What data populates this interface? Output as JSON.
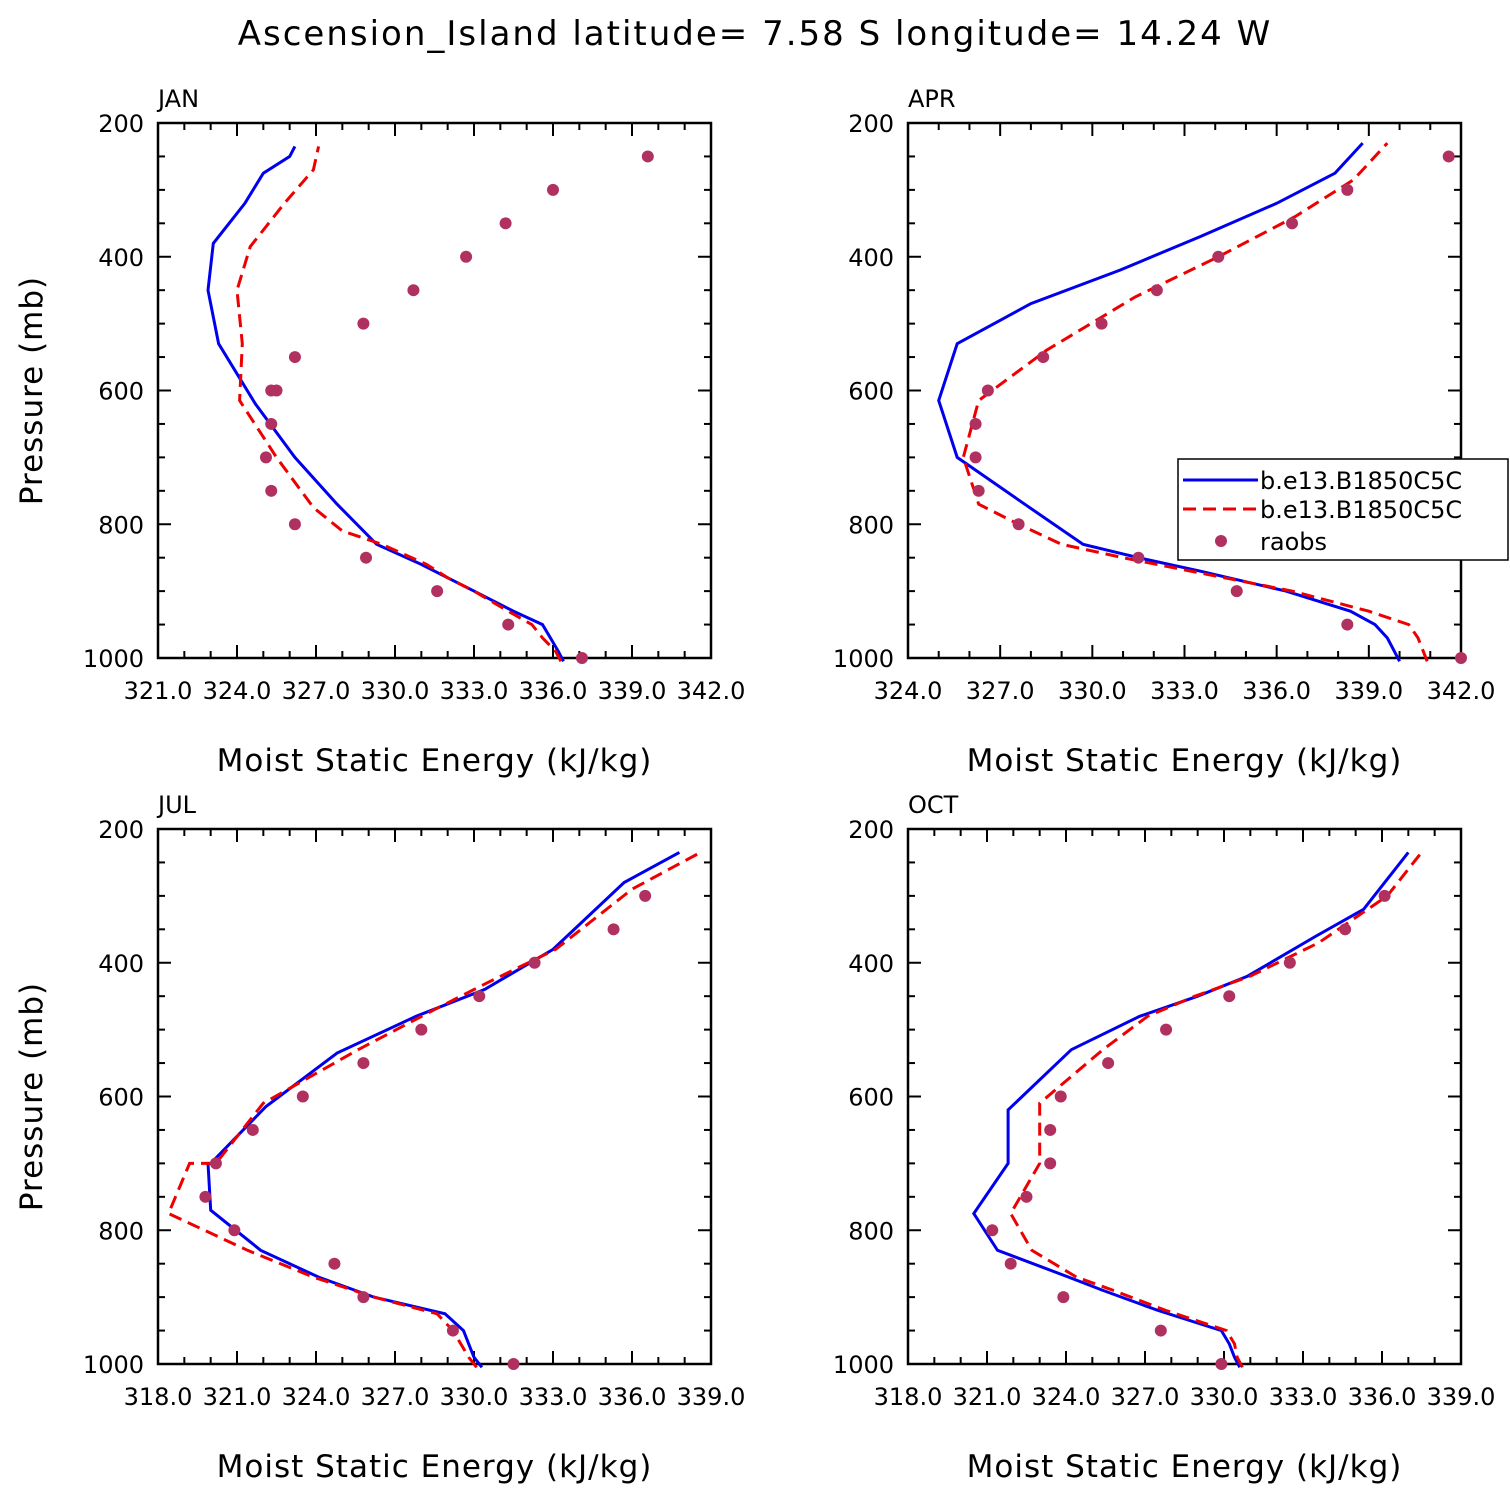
{
  "title": "Ascension_Island  latitude= 7.58 S longitude= 14.24 W",
  "colors": {
    "model1": "#0000ee",
    "model2": "#ee0000",
    "raobs": "#b03060"
  },
  "legend": [
    "b.e13.B1850C5C",
    "b.e13.B1850C5C",
    "raobs"
  ],
  "chart_data": [
    {
      "type": "line",
      "panel": "JAN",
      "xlabel": "Moist Static Energy (kJ/kg)",
      "ylabel": "Pressure (mb)",
      "xlim": [
        321.0,
        342.0
      ],
      "ylim": [
        1000,
        200
      ],
      "y_inverted": true,
      "xticks": [
        "321.0",
        "324.0",
        "327.0",
        "330.0",
        "333.0",
        "336.0",
        "339.0",
        "342.0"
      ],
      "yticks": [
        200,
        400,
        600,
        800,
        1000
      ],
      "series": [
        {
          "name": "b.e13.B1850C5C",
          "style": "solid",
          "x": [
            336.4,
            336.2,
            335.9,
            335.6,
            334.5,
            333.0,
            332.0,
            331.0,
            329.3,
            327.8,
            326.2,
            324.7,
            323.3,
            322.9,
            323.1,
            324.3,
            325.0,
            326.0,
            326.2
          ],
          "y": [
            1005,
            990,
            970,
            950,
            930,
            900,
            880,
            860,
            830,
            770,
            700,
            620,
            530,
            450,
            380,
            320,
            275,
            250,
            235
          ]
        },
        {
          "name": "b.e13.B1850C5C",
          "style": "dashed",
          "x": [
            336.3,
            336.1,
            335.6,
            335.2,
            334.3,
            333.0,
            332.0,
            331.2,
            329.5,
            328.0,
            326.9,
            325.5,
            324.1,
            324.2,
            324.0,
            324.5,
            325.8,
            326.9,
            327.1
          ],
          "y": [
            1005,
            990,
            970,
            950,
            930,
            900,
            880,
            860,
            830,
            810,
            775,
            700,
            615,
            530,
            450,
            385,
            320,
            270,
            235
          ]
        },
        {
          "name": "raobs",
          "style": "points",
          "x": [
            337.1,
            334.3,
            331.6,
            328.9,
            326.2,
            325.3,
            325.3,
            325.1,
            325.3,
            325.5,
            326.2,
            328.8,
            330.7,
            332.7,
            334.2,
            336.0,
            339.6
          ],
          "y": [
            1000,
            950,
            900,
            850,
            800,
            750,
            650,
            700,
            600,
            600,
            550,
            500,
            450,
            400,
            350,
            300,
            250
          ]
        }
      ]
    },
    {
      "type": "line",
      "panel": "APR",
      "xlabel": "Moist Static Energy (kJ/kg)",
      "ylabel": "",
      "xlim": [
        324.0,
        342.0
      ],
      "ylim": [
        1000,
        200
      ],
      "y_inverted": true,
      "xticks": [
        "324.0",
        "327.0",
        "330.0",
        "333.0",
        "336.0",
        "339.0",
        "342.0"
      ],
      "yticks": [
        200,
        400,
        600,
        800,
        1000
      ],
      "series": [
        {
          "name": "b.e13.B1850C5C",
          "style": "solid",
          "x": [
            340.0,
            339.6,
            339.2,
            338.4,
            336.3,
            333.5,
            331.5,
            329.7,
            327.8,
            325.6,
            325.0,
            325.6,
            328.0,
            330.9,
            333.5,
            336.0,
            337.9,
            338.8
          ],
          "y": [
            1005,
            970,
            950,
            930,
            900,
            870,
            850,
            830,
            770,
            700,
            615,
            530,
            470,
            420,
            370,
            320,
            275,
            230
          ]
        },
        {
          "name": "b.e13.B1850C5C",
          "style": "dashed",
          "x": [
            340.9,
            340.6,
            340.3,
            339.0,
            336.5,
            333.2,
            331.0,
            329.0,
            327.6,
            326.3,
            325.8,
            326.3,
            328.5,
            331.4,
            334.1,
            336.6,
            338.5,
            339.6
          ],
          "y": [
            1005,
            970,
            950,
            930,
            900,
            870,
            850,
            830,
            800,
            770,
            700,
            615,
            540,
            460,
            400,
            340,
            285,
            230
          ]
        },
        {
          "name": "raobs",
          "style": "points",
          "x": [
            342.0,
            338.3,
            334.7,
            331.5,
            327.6,
            326.3,
            326.2,
            326.2,
            326.6,
            328.4,
            330.3,
            332.1,
            334.1,
            336.5,
            338.3,
            341.6
          ],
          "y": [
            1000,
            950,
            900,
            850,
            800,
            750,
            700,
            650,
            600,
            550,
            500,
            450,
            400,
            350,
            300,
            250
          ]
        }
      ]
    },
    {
      "type": "line",
      "panel": "JUL",
      "xlabel": "Moist Static Energy (kJ/kg)",
      "ylabel": "Pressure (mb)",
      "xlim": [
        318.0,
        339.0
      ],
      "ylim": [
        1000,
        200
      ],
      "y_inverted": true,
      "xticks": [
        "318.0",
        "321.0",
        "324.0",
        "327.0",
        "330.0",
        "333.0",
        "336.0",
        "339.0"
      ],
      "yticks": [
        200,
        400,
        600,
        800,
        1000
      ],
      "series": [
        {
          "name": "b.e13.B1850C5C",
          "style": "solid",
          "x": [
            330.3,
            330.0,
            329.8,
            329.6,
            328.9,
            326.2,
            324.1,
            321.9,
            320.0,
            319.9,
            320.0,
            322.1,
            324.8,
            327.8,
            330.4,
            333.0,
            335.7,
            337.8
          ],
          "y": [
            1005,
            990,
            970,
            950,
            925,
            900,
            870,
            830,
            770,
            700,
            700,
            615,
            535,
            480,
            440,
            380,
            280,
            235
          ]
        },
        {
          "name": "b.e13.B1850C5C",
          "style": "dashed",
          "x": [
            330.1,
            329.8,
            329.5,
            329.2,
            328.6,
            326.2,
            323.9,
            321.4,
            318.4,
            319.2,
            320.2,
            322.0,
            325.6,
            328.5,
            330.5,
            333.1,
            336.0,
            338.6
          ],
          "y": [
            1005,
            990,
            970,
            950,
            925,
            900,
            870,
            830,
            775,
            700,
            700,
            610,
            530,
            470,
            430,
            380,
            290,
            235
          ]
        },
        {
          "name": "raobs",
          "style": "points",
          "x": [
            331.5,
            329.2,
            325.8,
            324.7,
            320.9,
            319.8,
            320.2,
            321.6,
            323.5,
            325.8,
            328.0,
            330.2,
            332.3,
            335.3,
            336.5
          ],
          "y": [
            1000,
            950,
            900,
            850,
            800,
            750,
            700,
            650,
            600,
            550,
            500,
            450,
            400,
            350,
            300
          ]
        }
      ]
    },
    {
      "type": "line",
      "panel": "OCT",
      "xlabel": "Moist Static Energy (kJ/kg)",
      "ylabel": "",
      "xlim": [
        318.0,
        339.0
      ],
      "ylim": [
        1000,
        200
      ],
      "y_inverted": true,
      "xticks": [
        "318.0",
        "321.0",
        "324.0",
        "327.0",
        "330.0",
        "333.0",
        "336.0",
        "339.0"
      ],
      "yticks": [
        200,
        400,
        600,
        800,
        1000
      ],
      "series": [
        {
          "name": "b.e13.B1850C5C",
          "style": "solid",
          "x": [
            330.6,
            330.4,
            330.2,
            329.9,
            327.5,
            325.4,
            324.1,
            321.4,
            320.5,
            321.8,
            321.8,
            324.2,
            326.8,
            329.0,
            330.9,
            333.5,
            335.3,
            337.0
          ],
          "y": [
            1005,
            990,
            970,
            950,
            920,
            890,
            870,
            830,
            775,
            700,
            620,
            530,
            480,
            450,
            420,
            360,
            320,
            235
          ]
        },
        {
          "name": "b.e13.B1850C5C",
          "style": "dashed",
          "x": [
            330.7,
            330.5,
            330.4,
            330.1,
            327.8,
            325.8,
            324.4,
            322.7,
            321.9,
            323.0,
            323.0,
            325.4,
            327.1,
            328.9,
            331.0,
            333.6,
            336.2,
            337.5
          ],
          "y": [
            1005,
            990,
            970,
            950,
            920,
            890,
            870,
            830,
            775,
            700,
            610,
            530,
            480,
            450,
            420,
            370,
            300,
            235
          ]
        },
        {
          "name": "raobs",
          "style": "points",
          "x": [
            329.9,
            327.6,
            323.9,
            321.9,
            321.2,
            322.5,
            323.4,
            323.4,
            323.8,
            325.6,
            327.8,
            330.2,
            332.5,
            334.6,
            336.1
          ],
          "y": [
            1000,
            950,
            900,
            850,
            800,
            750,
            700,
            650,
            600,
            550,
            500,
            450,
            400,
            350,
            300
          ]
        }
      ]
    }
  ]
}
